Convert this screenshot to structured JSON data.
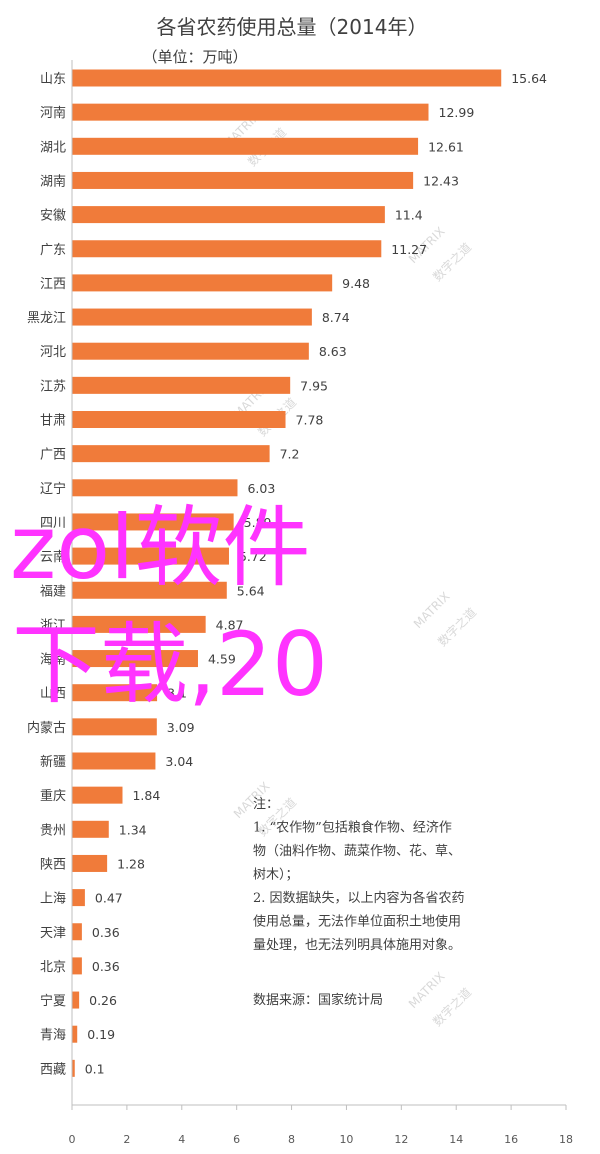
{
  "chart_data": {
    "type": "bar",
    "orientation": "horizontal",
    "title": "各省农药使用总量（2014年）",
    "subtitle": "（单位：万吨）",
    "categories": [
      "山东",
      "河南",
      "湖北",
      "湖南",
      "安徽",
      "广东",
      "江西",
      "黑龙江",
      "河北",
      "江苏",
      "甘肃",
      "广西",
      "辽宁",
      "四川",
      "云南",
      "福建",
      "浙江",
      "海南",
      "山西",
      "内蒙古",
      "新疆",
      "重庆",
      "贵州",
      "陕西",
      "上海",
      "天津",
      "北京",
      "宁夏",
      "青海",
      "西藏"
    ],
    "value_labels": [
      "15.64",
      "12.99",
      "12.61",
      "12.43",
      "11.4",
      "11.27",
      "9.48",
      "8.74",
      "8.63",
      "7.95",
      "7.78",
      "7.2",
      "6.03",
      "5.89",
      "5.72",
      "5.64",
      "4.87",
      "4.59",
      "3.1",
      "3.09",
      "3.04",
      "1.84",
      "1.34",
      "1.28",
      "0.47",
      "0.36",
      "0.36",
      "0.26",
      "0.19",
      "0.1"
    ],
    "values": [
      15.64,
      12.99,
      12.61,
      12.43,
      11.4,
      11.27,
      9.48,
      8.74,
      8.63,
      7.95,
      7.78,
      7.2,
      6.03,
      5.89,
      5.72,
      5.64,
      4.87,
      4.59,
      3.1,
      3.09,
      3.04,
      1.84,
      1.34,
      1.28,
      0.47,
      0.36,
      0.36,
      0.26,
      0.19,
      0.1
    ],
    "xlim": [
      0,
      18
    ],
    "x_ticks": [
      "0",
      "2",
      "4",
      "6",
      "8",
      "10",
      "12",
      "14",
      "16",
      "18"
    ],
    "grid": false,
    "bar_color": "#f07b3a",
    "axis_color": "#bfbfbf",
    "notes": [
      "注：",
      "1. “农作物”包括粮食作物、经济作",
      "物（油料作物、蔬菜作物、花、草、",
      "树木）；",
      "2. 因数据缺失，以上内容为各省农药",
      "使用总量，无法作单位面积土地使用",
      "量处理，也无法列明具体施用对象。",
      "",
      "数据来源：国家统计局"
    ],
    "watermark": {
      "brand": "数字之道",
      "sub": "MATRIX"
    },
    "overlay": {
      "lines": [
        "zol软件",
        "下载,20"
      ],
      "color": "#ff33ff"
    }
  }
}
